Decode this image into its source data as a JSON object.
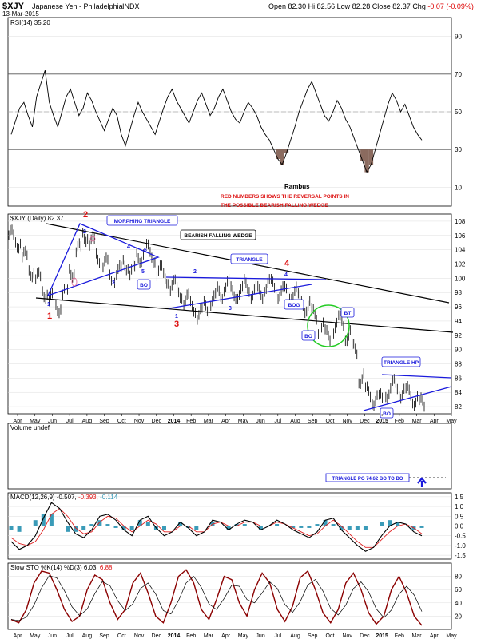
{
  "header": {
    "symbol": "$XJY",
    "name": "Japanese Yen - Philadelphia",
    "exchange": "INDX",
    "date": "13-Mar-2015",
    "open_label": "Open",
    "open": "82.30",
    "high_label": "Hi",
    "high": "82.56",
    "low_label": "Low",
    "low": "82.28",
    "close_label": "Close",
    "close": "82.37",
    "chg_label": "Chg",
    "chg": "-0.07 (-0.09%)"
  },
  "rsi": {
    "label": "RSI(14) 35.20",
    "ticks": [
      "90",
      "70",
      "50",
      "30",
      "10"
    ],
    "ticks_v": [
      90,
      70,
      50,
      30,
      10
    ],
    "ylim": [
      0,
      100
    ],
    "values": [
      38,
      45,
      52,
      55,
      48,
      42,
      58,
      65,
      72,
      55,
      48,
      42,
      50,
      58,
      62,
      55,
      48,
      52,
      60,
      56,
      50,
      45,
      40,
      46,
      52,
      48,
      38,
      32,
      40,
      48,
      55,
      50,
      46,
      42,
      38,
      45,
      52,
      58,
      62,
      56,
      52,
      48,
      44,
      50,
      56,
      60,
      54,
      48,
      52,
      58,
      62,
      56,
      50,
      46,
      44,
      50,
      55,
      52,
      48,
      42,
      38,
      35,
      30,
      25,
      22,
      28,
      35,
      42,
      50,
      56,
      62,
      66,
      60,
      54,
      48,
      45,
      50,
      56,
      52,
      46,
      42,
      36,
      30,
      24,
      18,
      22,
      30,
      38,
      46,
      54,
      60,
      56,
      50,
      54,
      48,
      42,
      38,
      35
    ],
    "fill_color": "#8b6b5f"
  },
  "annotations": {
    "rambus": "Rambus",
    "red_note_1": "RED NUMBERS SHOWS THE REVERSAL POINTS IN",
    "red_note_2": "THE POSSIBLE BEARISH FALLING WEDGE",
    "morphing_triangle": "MORPHING TRIANGLE",
    "bearish_wedge": "BEARISH FALLING WEDGE",
    "triangle": "TRIANGLE",
    "triangle_hp": "TRIANGLE HP",
    "bo": "BO",
    "bog": "BOG",
    "bt": "BT",
    "triangle_po": "TRIANGLE PO 74.62 BO TO BO"
  },
  "price": {
    "label": "$XJY (Daily) 82.37",
    "ticks": [
      "108",
      "106",
      "104",
      "102",
      "100",
      "98",
      "96",
      "94",
      "92",
      "90",
      "88",
      "86",
      "84",
      "82"
    ],
    "ticks_v": [
      108,
      106,
      104,
      102,
      100,
      98,
      96,
      94,
      92,
      90,
      88,
      86,
      84,
      82
    ],
    "ylim": [
      81,
      109
    ],
    "close": [
      106,
      105,
      103,
      101,
      100,
      98,
      97,
      96,
      98,
      101,
      104,
      106,
      105,
      103,
      102,
      100,
      101,
      102,
      101,
      103,
      104,
      103,
      101,
      100,
      99,
      98,
      97,
      96,
      95,
      96,
      97,
      98,
      99,
      98,
      98,
      99,
      98,
      98,
      99,
      99,
      98,
      98,
      98,
      97,
      96,
      95,
      93,
      92,
      93,
      94,
      92,
      90,
      86,
      84,
      83,
      83,
      84,
      85,
      84,
      84,
      83,
      82.4
    ]
  },
  "volume": {
    "label": "Volume undef"
  },
  "macd": {
    "label": "MACD(12,26,9)",
    "v1": "-0.507",
    "v2": "-0.393",
    "v3": "-0.114",
    "ticks": [
      "1.5",
      "1.0",
      "0.5",
      "0.0",
      "-0.5",
      "-1.0",
      "-1.5"
    ],
    "ticks_v": [
      1.5,
      1,
      0.5,
      0,
      -0.5,
      -1,
      -1.5
    ],
    "ylim": [
      -1.7,
      1.7
    ],
    "macd": [
      -0.8,
      -1.2,
      -1.0,
      -0.5,
      0.4,
      1.2,
      0.9,
      0.2,
      -0.4,
      -0.6,
      -0.2,
      0.5,
      0.6,
      0.3,
      -0.2,
      -0.5,
      0.3,
      0.5,
      -0.1,
      -0.5,
      -0.3,
      0.2,
      -0.1,
      -0.5,
      -0.3,
      0.3,
      0.2,
      -0.2,
      0.1,
      0.3,
      0.2,
      -0.2,
      0.0,
      0.3,
      0.1,
      -0.2,
      -0.4,
      -0.6,
      -0.3,
      0.3,
      0.4,
      -0.2,
      -0.6,
      -1.0,
      -1.3,
      -1.1,
      -0.5,
      0.0,
      0.2,
      0.1,
      -0.3,
      -0.5
    ],
    "signal": [
      -0.6,
      -0.9,
      -1.0,
      -0.8,
      -0.2,
      0.6,
      0.9,
      0.5,
      -0.1,
      -0.4,
      -0.3,
      0.2,
      0.5,
      0.4,
      0.0,
      -0.3,
      0.0,
      0.3,
      0.1,
      -0.3,
      -0.3,
      0.0,
      0.0,
      -0.3,
      -0.3,
      0.1,
      0.2,
      0.0,
      0.0,
      0.2,
      0.2,
      0.0,
      0.0,
      0.2,
      0.1,
      -0.1,
      -0.3,
      -0.5,
      -0.4,
      0.0,
      0.3,
      0.0,
      -0.4,
      -0.8,
      -1.1,
      -1.1,
      -0.7,
      -0.3,
      0.0,
      0.1,
      -0.1,
      -0.4
    ],
    "macd_color": "#000000",
    "signal_color": "#e02020",
    "hist_color": "#3a9bb8"
  },
  "sto": {
    "label": "Slow STO %K(14) %D(3)",
    "v1": "6.03",
    "v2": "6.88",
    "ticks": [
      "80",
      "60",
      "40",
      "20"
    ],
    "ticks_v": [
      80,
      60,
      40,
      20
    ],
    "ylim": [
      0,
      100
    ],
    "k": [
      15,
      10,
      30,
      70,
      88,
      85,
      60,
      30,
      12,
      20,
      60,
      82,
      75,
      40,
      15,
      30,
      70,
      85,
      55,
      20,
      10,
      40,
      80,
      90,
      70,
      30,
      15,
      45,
      80,
      75,
      40,
      20,
      60,
      85,
      70,
      30,
      12,
      35,
      78,
      88,
      60,
      25,
      10,
      30,
      70,
      85,
      60,
      25,
      8,
      20,
      60,
      80,
      55,
      20,
      6
    ],
    "color": "#8b0000"
  },
  "x_axis": {
    "labels": [
      "Apr",
      "May",
      "Jun",
      "Jul",
      "Aug",
      "Sep",
      "Oct",
      "Nov",
      "Dec",
      "2014",
      "Feb",
      "Mar",
      "Apr",
      "May",
      "Jun",
      "Jul",
      "Aug",
      "Sep",
      "Oct",
      "Nov",
      "Dec",
      "2015",
      "Feb",
      "Mar",
      "Apr",
      "May"
    ]
  },
  "colors": {
    "blue": "#1a1adc",
    "red": "#dd1111",
    "green": "#22cc22",
    "grid": "#bbbbbb"
  }
}
